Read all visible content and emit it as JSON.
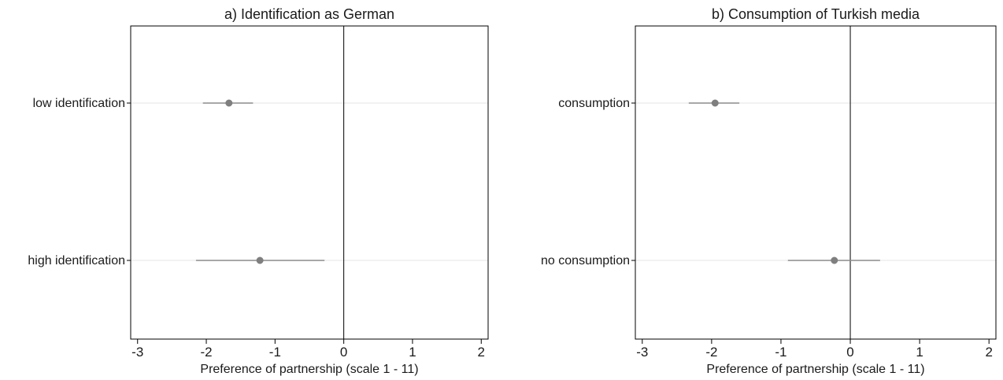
{
  "chart_data": [
    {
      "type": "scatter",
      "subtype": "coefficient plot with confidence intervals",
      "title": "a) Identification as German",
      "xlabel": "Preference of partnership (scale 1 - 11)",
      "ylabel": "",
      "xlim": [
        -3.1,
        2.1
      ],
      "xticks": [
        -3,
        -2,
        -1,
        0,
        1,
        2
      ],
      "xtick_labels": [
        "-3",
        "-2",
        "-1",
        "0",
        "1",
        "2"
      ],
      "reference_line": 0,
      "grid": "horizontal lines at categories",
      "categories": [
        "low identification",
        "high identification"
      ],
      "series": [
        {
          "estimates": [
            -1.67,
            -1.22
          ],
          "ci_low": [
            -2.05,
            -2.15
          ],
          "ci_high": [
            -1.32,
            -0.28
          ]
        }
      ]
    },
    {
      "type": "scatter",
      "subtype": "coefficient plot with confidence intervals",
      "title": "b) Consumption of Turkish media",
      "xlabel": "Preference of partnership (scale 1 - 11)",
      "ylabel": "",
      "xlim": [
        -3.1,
        2.1
      ],
      "xticks": [
        -3,
        -2,
        -1,
        0,
        1,
        2
      ],
      "xtick_labels": [
        "-3",
        "-2",
        "-1",
        "0",
        "1",
        "2"
      ],
      "reference_line": 0,
      "grid": "horizontal lines at categories",
      "categories": [
        "consumption",
        "no consumption"
      ],
      "series": [
        {
          "estimates": [
            -1.95,
            -0.23
          ],
          "ci_low": [
            -2.33,
            -0.9
          ],
          "ci_high": [
            -1.6,
            0.43
          ]
        }
      ]
    }
  ],
  "colors": {
    "marker": "#7f7f7f",
    "ci_line": "#8c8c8c",
    "gridline": "#e4e4e4",
    "frame": "#000000",
    "text": "#1a1a1a"
  }
}
